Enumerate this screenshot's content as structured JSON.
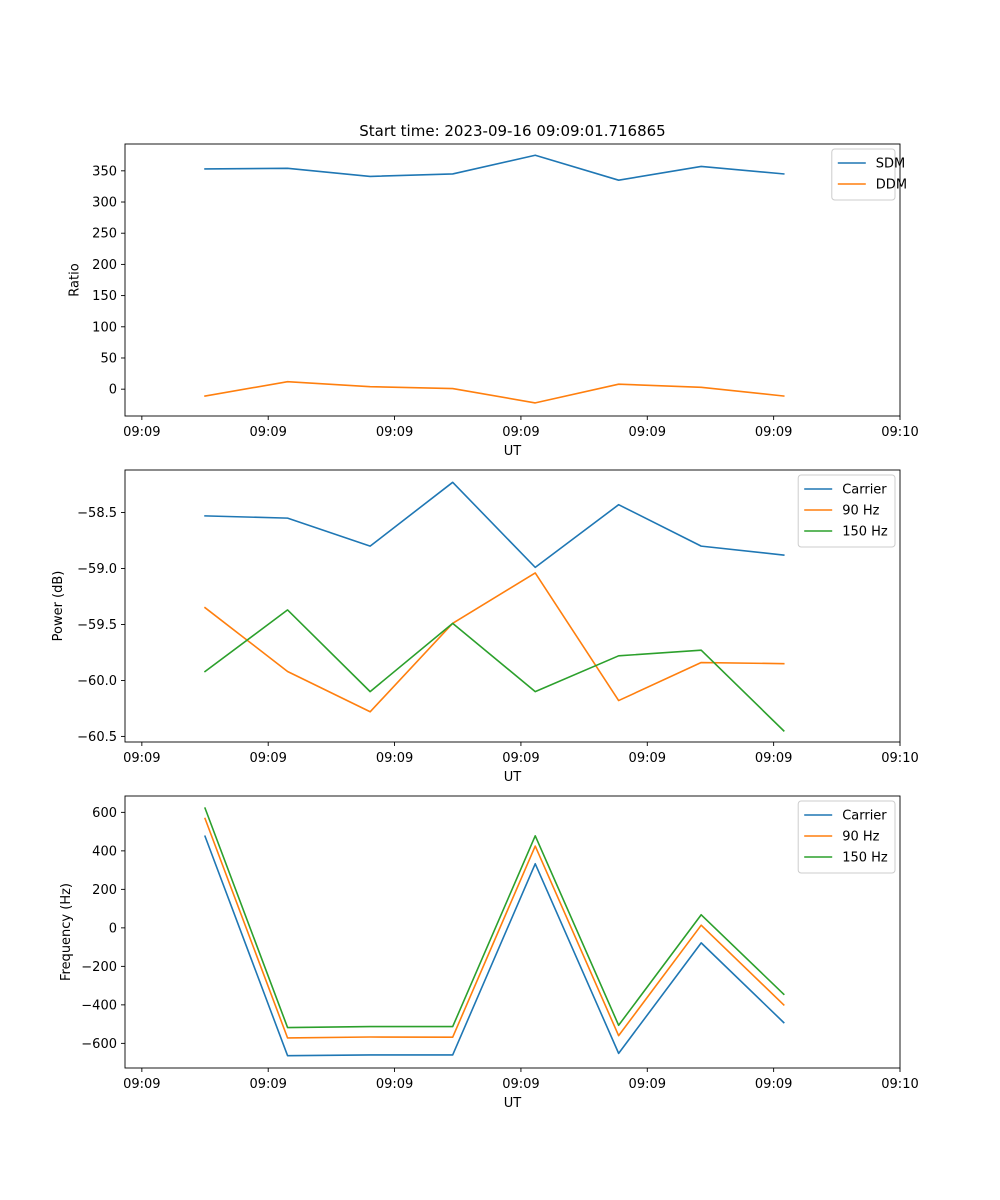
{
  "colors": {
    "c0": "#1f77b4",
    "c1": "#ff7f0e",
    "c2": "#2ca02c",
    "axis": "#000000",
    "legend_border": "#cccccc"
  },
  "chart_data": [
    {
      "type": "line",
      "title": "Start time: 2023-09-16 09:09:01.716865",
      "xlabel": "UT",
      "ylabel": "Ratio",
      "legend_position": "top-right",
      "xlim": [
        0,
        9.2
      ],
      "ylim": [
        -43,
        393
      ],
      "x_ticks": [
        0.2,
        1.7,
        3.2,
        4.7,
        6.2,
        7.7,
        9.2
      ],
      "x_tick_labels": [
        "09:09",
        "09:09",
        "09:09",
        "09:09",
        "09:09",
        "09:09",
        "09:10"
      ],
      "y_ticks": [
        0,
        50,
        100,
        150,
        200,
        250,
        300,
        350
      ],
      "y_tick_labels": [
        "0",
        "50",
        "100",
        "150",
        "200",
        "250",
        "300",
        "350"
      ],
      "x": [
        0.95,
        1.93,
        2.91,
        3.89,
        4.87,
        5.86,
        6.84,
        7.82
      ],
      "series": [
        {
          "name": "SDM",
          "color": "#1f77b4",
          "values": [
            353,
            354,
            341,
            345,
            375,
            335,
            357,
            345
          ]
        },
        {
          "name": "DDM",
          "color": "#ff7f0e",
          "values": [
            -11,
            12,
            4,
            1,
            -22,
            8,
            3,
            -11
          ]
        }
      ]
    },
    {
      "type": "line",
      "title": "",
      "xlabel": "UT",
      "ylabel": "Power (dB)",
      "legend_position": "top-right",
      "xlim": [
        0,
        9.2
      ],
      "ylim": [
        -60.55,
        -58.12
      ],
      "x_ticks": [
        0.2,
        1.7,
        3.2,
        4.7,
        6.2,
        7.7,
        9.2
      ],
      "x_tick_labels": [
        "09:09",
        "09:09",
        "09:09",
        "09:09",
        "09:09",
        "09:09",
        "09:10"
      ],
      "y_ticks": [
        -60.5,
        -60.0,
        -59.5,
        -59.0,
        -58.5
      ],
      "y_tick_labels": [
        "−60.5",
        "−60.0",
        "−59.5",
        "−59.0",
        "−58.5"
      ],
      "x": [
        0.95,
        1.93,
        2.91,
        3.89,
        4.87,
        5.86,
        6.84,
        7.82
      ],
      "series": [
        {
          "name": "Carrier",
          "color": "#1f77b4",
          "values": [
            -58.53,
            -58.55,
            -58.8,
            -58.23,
            -58.99,
            -58.43,
            -58.8,
            -58.88
          ]
        },
        {
          "name": "90 Hz",
          "color": "#ff7f0e",
          "values": [
            -59.35,
            -59.92,
            -60.28,
            -59.49,
            -59.04,
            -60.18,
            -59.84,
            -59.85
          ]
        },
        {
          "name": "150 Hz",
          "color": "#2ca02c",
          "values": [
            -59.92,
            -59.37,
            -60.1,
            -59.49,
            -60.1,
            -59.78,
            -59.73,
            -60.45
          ]
        }
      ]
    },
    {
      "type": "line",
      "title": "",
      "xlabel": "UT",
      "ylabel": "Frequency (Hz)",
      "legend_position": "top-right",
      "xlim": [
        0,
        9.2
      ],
      "ylim": [
        -728,
        685
      ],
      "x_ticks": [
        0.2,
        1.7,
        3.2,
        4.7,
        6.2,
        7.7,
        9.2
      ],
      "x_tick_labels": [
        "09:09",
        "09:09",
        "09:09",
        "09:09",
        "09:09",
        "09:09",
        "09:10"
      ],
      "y_ticks": [
        -600,
        -400,
        -200,
        0,
        200,
        400,
        600
      ],
      "y_tick_labels": [
        "−600",
        "−400",
        "−200",
        "0",
        "200",
        "400",
        "600"
      ],
      "x": [
        0.95,
        1.93,
        2.91,
        3.89,
        4.87,
        5.86,
        6.84,
        7.82
      ],
      "series": [
        {
          "name": "Carrier",
          "color": "#1f77b4",
          "values": [
            476,
            -664,
            -660,
            -660,
            333,
            -652,
            -78,
            -492
          ]
        },
        {
          "name": "90 Hz",
          "color": "#ff7f0e",
          "values": [
            568,
            -572,
            -567,
            -568,
            425,
            -560,
            14,
            -400
          ]
        },
        {
          "name": "150 Hz",
          "color": "#2ca02c",
          "values": [
            622,
            -518,
            -513,
            -513,
            478,
            -506,
            68,
            -345
          ]
        }
      ]
    }
  ]
}
